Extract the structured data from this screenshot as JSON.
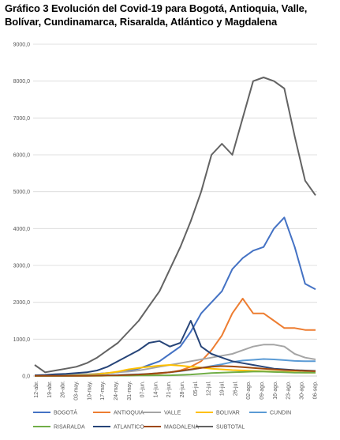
{
  "title": "Gráfico 3 Evolución del Covid-19 para Bogotá, Antioquia, Valle, Bolívar, Cundinamarca, Risaralda, Atlántico y Magdalena",
  "chart_data": {
    "type": "line",
    "title": "Gráfico 3 Evolución del Covid-19 para Bogotá, Antioquia, Valle, Bolívar, Cundinamarca, Risaralda, Atlántico y Magdalena",
    "xlabel": "",
    "ylabel": "",
    "ylim": [
      0,
      9000
    ],
    "grid": true,
    "legend_position": "bottom",
    "y_ticks": [
      "0,0",
      "1000,0",
      "2000,0",
      "3000,0",
      "4000,0",
      "5000,0",
      "6000,0",
      "7000,0",
      "8000,0",
      "9000,0"
    ],
    "x_ticks": [
      "12-abr.",
      "19-abr.",
      "26-abr.",
      "03-may.",
      "10-may.",
      "17-may.",
      "24-may.",
      "31-may.",
      "07-jun.",
      "14-jun.",
      "21-jun.",
      "28-jun.",
      "05-jul.",
      "12-jul.",
      "19-jul.",
      "26-jul.",
      "02-ago.",
      "09-ago.",
      "16-ago.",
      "23-ago.",
      "30-ago.",
      "06-sep."
    ],
    "series": [
      {
        "name": "BOGOTÁ",
        "color": "#4472C4",
        "values": [
          5,
          10,
          15,
          20,
          30,
          40,
          60,
          80,
          100,
          150,
          200,
          300,
          400,
          600,
          800,
          1200,
          1700,
          2000,
          2300,
          2900,
          3200,
          3400,
          3500,
          4000,
          4300,
          3500,
          2500,
          2350
        ]
      },
      {
        "name": "ANTIOQUIA",
        "color": "#ED7D31",
        "values": [
          5,
          5,
          5,
          5,
          5,
          10,
          10,
          15,
          20,
          30,
          40,
          50,
          70,
          100,
          150,
          250,
          400,
          700,
          1100,
          1700,
          2100,
          1700,
          1700,
          1500,
          1300,
          1300,
          1250,
          1250
        ]
      },
      {
        "name": "VALLE",
        "color": "#A5A5A5",
        "values": [
          20,
          20,
          25,
          30,
          40,
          50,
          60,
          80,
          100,
          120,
          150,
          200,
          250,
          300,
          350,
          400,
          450,
          500,
          550,
          600,
          700,
          800,
          850,
          850,
          800,
          600,
          500,
          450
        ]
      },
      {
        "name": "BOLIVAR",
        "color": "#FFC000",
        "values": [
          10,
          10,
          10,
          15,
          20,
          30,
          50,
          80,
          120,
          180,
          220,
          250,
          280,
          300,
          280,
          250,
          230,
          200,
          180,
          160,
          150,
          140,
          130,
          120,
          110,
          100,
          90,
          90
        ]
      },
      {
        "name": "CUNDIN",
        "color": "#5B9BD5",
        "values": [
          5,
          5,
          10,
          10,
          10,
          15,
          20,
          25,
          30,
          40,
          50,
          60,
          80,
          100,
          130,
          170,
          220,
          270,
          320,
          380,
          420,
          440,
          460,
          450,
          430,
          410,
          400,
          400
        ]
      },
      {
        "name": "RISARALDA",
        "color": "#70AD47",
        "values": [
          2,
          2,
          2,
          2,
          5,
          5,
          5,
          10,
          10,
          10,
          15,
          15,
          20,
          20,
          30,
          40,
          60,
          80,
          90,
          100,
          110,
          120,
          120,
          110,
          100,
          90,
          90,
          90
        ]
      },
      {
        "name": "ATLANTICO",
        "color": "#264478",
        "values": [
          20,
          30,
          50,
          60,
          80,
          100,
          150,
          250,
          400,
          550,
          700,
          900,
          950,
          800,
          900,
          1500,
          800,
          600,
          500,
          400,
          350,
          300,
          250,
          200,
          180,
          160,
          150,
          140
        ]
      },
      {
        "name": "MAGDALENA",
        "color": "#9E480E",
        "values": [
          5,
          5,
          5,
          5,
          5,
          5,
          10,
          15,
          20,
          30,
          40,
          60,
          80,
          100,
          140,
          180,
          220,
          250,
          270,
          260,
          240,
          220,
          200,
          180,
          160,
          150,
          140,
          130
        ]
      },
      {
        "name": "SUBTOTAL",
        "color": "#636363",
        "values": [
          300,
          100,
          150,
          200,
          250,
          350,
          500,
          700,
          900,
          1200,
          1500,
          1900,
          2300,
          2900,
          3500,
          4200,
          5000,
          6000,
          6300,
          6000,
          7000,
          8000,
          8100,
          8000,
          7800,
          6500,
          5300,
          4900
        ]
      }
    ]
  }
}
